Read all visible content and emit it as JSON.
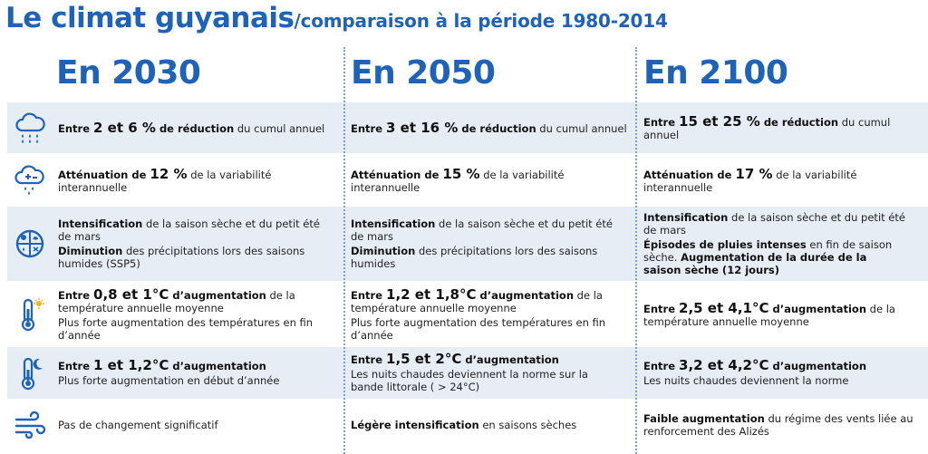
{
  "title": {
    "main": "Le climat guyanais",
    "sub": "/comparaison à la période 1980-2014"
  },
  "columns": [
    "En 2030",
    "En 2050",
    "En 2100"
  ],
  "rows": [
    {
      "icon": "rain-cloud-icon",
      "cells": [
        [
          {
            "parts": [
              {
                "t": "Entre ",
                "s": "b"
              },
              {
                "t": "2 et 6 %",
                "s": "big"
              },
              {
                "t": " de réduction",
                "s": "b"
              },
              {
                "t": " du cumul annuel",
                "s": ""
              }
            ]
          }
        ],
        [
          {
            "parts": [
              {
                "t": "Entre ",
                "s": "b"
              },
              {
                "t": "3 et 16 %",
                "s": "big"
              },
              {
                "t": " de réduction",
                "s": "b"
              },
              {
                "t": " du cumul annuel",
                "s": ""
              }
            ]
          }
        ],
        [
          {
            "parts": [
              {
                "t": "Entre ",
                "s": "b"
              },
              {
                "t": "15 et 25 %",
                "s": "big"
              },
              {
                "t": " de réduction",
                "s": "b"
              },
              {
                "t": " du cumul annuel",
                "s": ""
              }
            ]
          }
        ]
      ]
    },
    {
      "icon": "variability-cloud-icon",
      "cells": [
        [
          {
            "parts": [
              {
                "t": "Atténuation de ",
                "s": "b"
              },
              {
                "t": "12 %",
                "s": "big"
              },
              {
                "t": " de la variabilité interannuelle",
                "s": ""
              }
            ]
          }
        ],
        [
          {
            "parts": [
              {
                "t": "Atténuation de ",
                "s": "b"
              },
              {
                "t": "15 %",
                "s": "big"
              },
              {
                "t": " de la variabilité interannuelle",
                "s": ""
              }
            ]
          }
        ],
        [
          {
            "parts": [
              {
                "t": "Atténuation de ",
                "s": "b"
              },
              {
                "t": "17 %",
                "s": "big"
              },
              {
                "t": " de la variabilité interannuelle",
                "s": ""
              }
            ]
          }
        ]
      ]
    },
    {
      "icon": "seasons-icon",
      "cells": [
        [
          {
            "parts": [
              {
                "t": "Intensification",
                "s": "b"
              },
              {
                "t": " de la saison sèche et du petit été de mars",
                "s": ""
              }
            ]
          },
          {
            "parts": [
              {
                "t": "Diminution",
                "s": "b"
              },
              {
                "t": " des précipitations lors des saisons humides (SSP5)",
                "s": ""
              }
            ]
          }
        ],
        [
          {
            "parts": [
              {
                "t": "Intensification",
                "s": "b"
              },
              {
                "t": " de la saison sèche et du petit été de mars",
                "s": ""
              }
            ]
          },
          {
            "parts": [
              {
                "t": "Diminution",
                "s": "b"
              },
              {
                "t": " des précipitations lors des saisons humides",
                "s": ""
              }
            ]
          }
        ],
        [
          {
            "parts": [
              {
                "t": "Intensification",
                "s": "b"
              },
              {
                "t": " de la saison sèche et du petit été de mars",
                "s": ""
              }
            ]
          },
          {
            "parts": [
              {
                "t": "Épisodes de pluies intenses",
                "s": "b"
              },
              {
                "t": " en fin de saison sèche. ",
                "s": ""
              },
              {
                "t": "Augmentation de la durée de la saison sèche (12 jours)",
                "s": "b"
              }
            ]
          }
        ]
      ]
    },
    {
      "icon": "thermometer-sun-icon",
      "cells": [
        [
          {
            "parts": [
              {
                "t": "Entre ",
                "s": "b"
              },
              {
                "t": "0,8 et 1°C",
                "s": "big"
              },
              {
                "t": " d’augmentation",
                "s": "b"
              },
              {
                "t": " de la température annuelle moyenne",
                "s": ""
              }
            ]
          },
          {
            "parts": [
              {
                "t": "Plus forte augmentation des températures en fin d’année",
                "s": ""
              }
            ]
          }
        ],
        [
          {
            "parts": [
              {
                "t": "Entre ",
                "s": "b"
              },
              {
                "t": "1,2 et 1,8°C",
                "s": "big"
              },
              {
                "t": " d’augmentation",
                "s": "b"
              },
              {
                "t": " de la température annuelle moyenne",
                "s": ""
              }
            ]
          },
          {
            "parts": [
              {
                "t": "Plus forte augmentation des températures en fin d’année",
                "s": ""
              }
            ]
          }
        ],
        [
          {
            "parts": [
              {
                "t": "Entre ",
                "s": "b"
              },
              {
                "t": "2,5 et 4,1°C",
                "s": "big"
              },
              {
                "t": " d’augmentation",
                "s": "b"
              },
              {
                "t": " de la température annuelle moyenne",
                "s": ""
              }
            ]
          }
        ]
      ]
    },
    {
      "icon": "thermometer-moon-icon",
      "cells": [
        [
          {
            "parts": [
              {
                "t": "Entre ",
                "s": "b"
              },
              {
                "t": "1 et 1,2°C",
                "s": "big"
              },
              {
                "t": " d’augmentation",
                "s": "b"
              }
            ]
          },
          {
            "parts": [
              {
                "t": "Plus forte augmentation en début d’année",
                "s": ""
              }
            ]
          }
        ],
        [
          {
            "parts": [
              {
                "t": "Entre ",
                "s": "b"
              },
              {
                "t": "1,5 et 2°C",
                "s": "big"
              },
              {
                "t": " d’augmentation",
                "s": "b"
              }
            ]
          },
          {
            "parts": [
              {
                "t": "Les nuits chaudes deviennent la norme sur la bande littorale ( > 24°C)",
                "s": ""
              }
            ]
          }
        ],
        [
          {
            "parts": [
              {
                "t": "Entre ",
                "s": "b"
              },
              {
                "t": "3,2 et 4,2°C",
                "s": "big"
              },
              {
                "t": " d’augmentation",
                "s": "b"
              }
            ]
          },
          {
            "parts": [
              {
                "t": "Les nuits chaudes deviennent la norme",
                "s": ""
              }
            ]
          }
        ]
      ]
    },
    {
      "icon": "wind-icon",
      "cells": [
        [
          {
            "parts": [
              {
                "t": "Pas de changement significatif",
                "s": ""
              }
            ]
          }
        ],
        [
          {
            "parts": [
              {
                "t": "Légère intensification",
                "s": "b"
              },
              {
                "t": " en saisons sèches",
                "s": ""
              }
            ]
          }
        ],
        [
          {
            "parts": [
              {
                "t": "Faible augmentation",
                "s": "b"
              },
              {
                "t": " du régime des vents liée au renforcement des Alizés",
                "s": ""
              }
            ]
          }
        ]
      ]
    }
  ]
}
